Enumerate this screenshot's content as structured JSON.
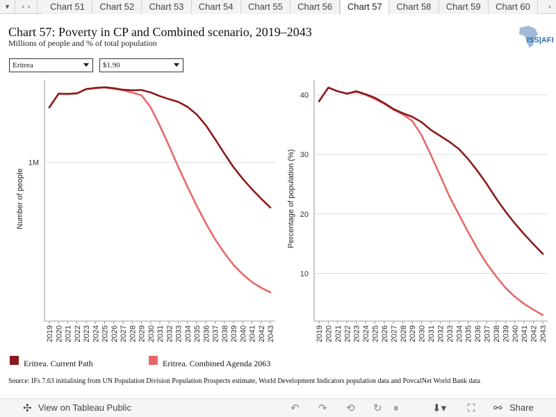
{
  "tabs": {
    "nav_glyph": "‹ ›",
    "items": [
      "Chart 51",
      "Chart 52",
      "Chart 53",
      "Chart 54",
      "Chart 55",
      "Chart 56",
      "Chart 57",
      "Chart 58",
      "Chart 59",
      "Chart 60"
    ],
    "active": "Chart 57"
  },
  "header": {
    "title": "Chart 57: Poverty in CP and Combined scenario, 2019–2043",
    "subtitle": "Millions of people and % of total population",
    "logo_text": "ISS|AFI"
  },
  "filters": {
    "country": "Eritrea",
    "poverty_line": "$1.90"
  },
  "colors": {
    "current_path": "#8b1a1a",
    "combined": "#e46a6a",
    "grid": "#dddddd",
    "axis": "#999999"
  },
  "chart_data": [
    {
      "type": "line",
      "ylabel": "Number of people",
      "ytick_labels": [
        {
          "value": 1000000,
          "label": "1M"
        }
      ],
      "ylim": [
        480000,
        1270000
      ],
      "x": [
        2019,
        2020,
        2021,
        2022,
        2023,
        2024,
        2025,
        2026,
        2027,
        2028,
        2029,
        2030,
        2031,
        2032,
        2033,
        2034,
        2035,
        2036,
        2037,
        2038,
        2039,
        2040,
        2041,
        2042,
        2043
      ],
      "series": [
        {
          "name": "Eritrea. Current Path",
          "color_key": "current_path",
          "values": [
            1180000,
            1225000,
            1224000,
            1226000,
            1240000,
            1244000,
            1246000,
            1243000,
            1238000,
            1236000,
            1237000,
            1229000,
            1217000,
            1207000,
            1198000,
            1182000,
            1157000,
            1121000,
            1076000,
            1029000,
            984000,
            946000,
            912000,
            881000,
            852000
          ]
        },
        {
          "name": "Eritrea. Combined Agenda 2063",
          "color_key": "combined",
          "values": [
            1180000,
            1225000,
            1224000,
            1226000,
            1240000,
            1243000,
            1245000,
            1241000,
            1236000,
            1228000,
            1220000,
            1180000,
            1120000,
            1054000,
            985000,
            920000,
            858000,
            800000,
            748000,
            703000,
            664000,
            633000,
            608000,
            589000,
            574000
          ]
        }
      ]
    },
    {
      "type": "line",
      "ylabel": "Percentage of population (%)",
      "yticks": [
        10,
        20,
        30,
        40
      ],
      "ylim": [
        2,
        42.5
      ],
      "x": [
        2019,
        2020,
        2021,
        2022,
        2023,
        2024,
        2025,
        2026,
        2027,
        2028,
        2029,
        2030,
        2031,
        2032,
        2033,
        2034,
        2035,
        2036,
        2037,
        2038,
        2039,
        2040,
        2041,
        2042,
        2043
      ],
      "series": [
        {
          "name": "Eritrea. Current Path",
          "color_key": "current_path",
          "values": [
            38.9,
            41.2,
            40.6,
            40.2,
            40.6,
            40.1,
            39.5,
            38.6,
            37.6,
            36.9,
            36.3,
            35.4,
            34.1,
            33.1,
            32.1,
            30.9,
            29.2,
            27.2,
            25.0,
            22.6,
            20.4,
            18.4,
            16.6,
            14.9,
            13.3
          ]
        },
        {
          "name": "Eritrea. Combined Agenda 2063",
          "color_key": "combined",
          "values": [
            38.9,
            41.2,
            40.6,
            40.2,
            40.5,
            40.0,
            39.3,
            38.5,
            37.5,
            36.7,
            35.6,
            33.2,
            29.9,
            26.4,
            22.9,
            19.9,
            16.9,
            14.1,
            11.6,
            9.5,
            7.6,
            6.1,
            4.9,
            3.9,
            3.0
          ]
        }
      ]
    }
  ],
  "legend": [
    "Eritrea. Current Path",
    "Eritrea. Combined Agenda 2063"
  ],
  "source": "Source: IFs 7.63 initialising from UN Population Division Population Prospects estimate, World Development Indicators population data and PovcalNet World Bank data",
  "toolbar": {
    "view_label": "View on Tableau Public",
    "share_label": "Share"
  }
}
